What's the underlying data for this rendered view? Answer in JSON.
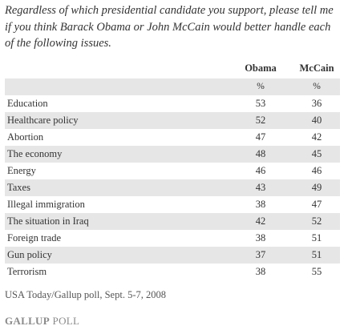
{
  "question": "Regardless of which presidential candidate you support, please tell me if you think Barack Obama or John McCain would better handle each of the following issues.",
  "columns": {
    "obama": "Obama",
    "mccain": "McCain",
    "unit": "%"
  },
  "chart_data": {
    "type": "table",
    "categories": [
      "Education",
      "Healthcare policy",
      "Abortion",
      "The economy",
      "Energy",
      "Taxes",
      "Illegal immigration",
      "The situation in Iraq",
      "Foreign trade",
      "Gun policy",
      "Terrorism"
    ],
    "series": [
      {
        "name": "Obama",
        "values": [
          53,
          52,
          47,
          48,
          46,
          43,
          38,
          42,
          38,
          37,
          38
        ]
      },
      {
        "name": "McCain",
        "values": [
          36,
          40,
          42,
          45,
          46,
          49,
          47,
          52,
          51,
          51,
          55
        ]
      }
    ]
  },
  "source": "USA Today/Gallup poll, Sept. 5-7, 2008",
  "logo": {
    "brand": "GALLUP",
    "suffix": "POLL"
  },
  "colors": {
    "shade": "#e6e6e6",
    "text": "#333333",
    "logo": "#8a8a8a"
  }
}
